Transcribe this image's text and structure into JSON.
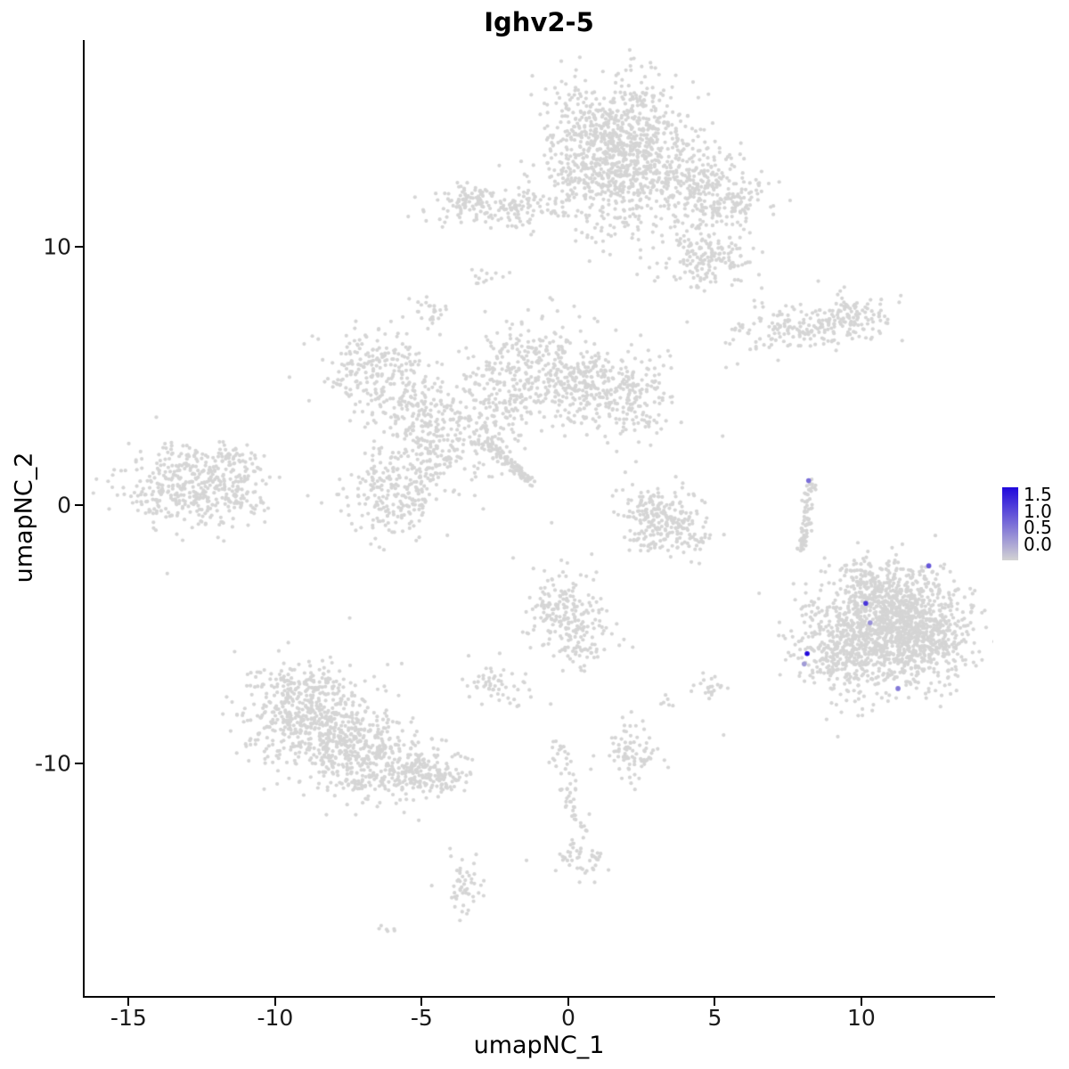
{
  "title": "Ighv2-5",
  "axes": {
    "xlabel": "umapNC_1",
    "ylabel": "umapNC_2",
    "xlim": [
      -16.5,
      14.5
    ],
    "ylim": [
      -19.0,
      18.0
    ],
    "xticks": [
      -15,
      -10,
      -5,
      0,
      5,
      10
    ],
    "yticks": [
      -10,
      0,
      10
    ]
  },
  "legend": {
    "labels": [
      "1.5",
      "1.0",
      "0.5",
      "0.0"
    ],
    "vmax": 1.8,
    "color_high": "#2008dc",
    "color_low": "#d3d3d3"
  },
  "style": {
    "point_color": "#d5d5d5",
    "point_radius": 2.1,
    "highlight_radius": 2.8,
    "axis_color": "#000000",
    "background": "#ffffff"
  },
  "chart_data": {
    "type": "scatter",
    "title": "Ighv2-5",
    "xlabel": "umapNC_1",
    "ylabel": "umapNC_2",
    "seed": 7,
    "clusters": [
      {
        "x": 1.6,
        "y": 14.6,
        "sx": 1.1,
        "sy": 1.1,
        "n": 550
      },
      {
        "x": 2.8,
        "y": 13.2,
        "sx": 1.1,
        "sy": 0.8,
        "n": 300
      },
      {
        "x": 0.8,
        "y": 12.7,
        "sx": 0.8,
        "sy": 0.7,
        "n": 180
      },
      {
        "x": 1.8,
        "y": 11.2,
        "sx": 0.7,
        "sy": 0.7,
        "n": 70
      },
      {
        "x": 5.0,
        "y": 12.0,
        "sx": 0.9,
        "sy": 0.7,
        "n": 250
      },
      {
        "x": 4.7,
        "y": 9.7,
        "sx": 0.8,
        "sy": 0.55,
        "n": 170
      },
      {
        "x": -2.2,
        "y": 11.5,
        "sx": 1.3,
        "sy": 0.4,
        "n": 170
      },
      {
        "x": -3.6,
        "y": 11.8,
        "sx": 0.4,
        "sy": 0.3,
        "n": 40
      },
      {
        "x": 8.0,
        "y": 6.9,
        "sx": 1.3,
        "sy": 0.45,
        "n": 170
      },
      {
        "x": 9.8,
        "y": 7.3,
        "sx": 0.6,
        "sy": 0.45,
        "n": 90
      },
      {
        "x": -2.9,
        "y": 8.8,
        "sx": 0.3,
        "sy": 0.18,
        "n": 12
      },
      {
        "x": -4.6,
        "y": 7.4,
        "sx": 0.35,
        "sy": 0.3,
        "n": 25
      },
      {
        "x": -6.6,
        "y": 5.4,
        "sx": 0.95,
        "sy": 0.8,
        "n": 200
      },
      {
        "x": -5.4,
        "y": 3.8,
        "sx": 0.8,
        "sy": 0.7,
        "n": 130
      },
      {
        "x": -3.9,
        "y": 2.6,
        "sx": 0.9,
        "sy": 0.8,
        "n": 170
      },
      {
        "x": -1.2,
        "y": 5.6,
        "sx": 1.0,
        "sy": 0.8,
        "n": 230
      },
      {
        "x": 1.7,
        "y": 4.2,
        "sx": 1.1,
        "sy": 0.9,
        "n": 260
      },
      {
        "x": 0.0,
        "y": 4.6,
        "sx": 0.9,
        "sy": 0.7,
        "n": 120
      },
      {
        "x": -2.3,
        "y": 3.9,
        "sx": 0.9,
        "sy": 0.7,
        "n": 120
      },
      {
        "x": -5.9,
        "y": 0.4,
        "sx": 0.85,
        "sy": 0.85,
        "n": 220
      },
      {
        "x": -4.8,
        "y": 1.7,
        "sx": 0.5,
        "sy": 0.5,
        "n": 50
      },
      {
        "x": -12.8,
        "y": 0.8,
        "sx": 1.1,
        "sy": 0.75,
        "n": 380
      },
      {
        "x": -11.2,
        "y": 1.7,
        "sx": 0.5,
        "sy": 0.4,
        "n": 50
      },
      {
        "x": -11.4,
        "y": 0.1,
        "sx": 0.5,
        "sy": 0.5,
        "n": 40
      },
      {
        "x": 2.7,
        "y": -0.1,
        "sx": 0.5,
        "sy": 0.4,
        "n": 80
      },
      {
        "x": 3.7,
        "y": -0.5,
        "sx": 0.55,
        "sy": 0.45,
        "n": 90
      },
      {
        "x": 3.1,
        "y": -1.2,
        "sx": 0.5,
        "sy": 0.35,
        "n": 70
      },
      {
        "x": 4.4,
        "y": -1.3,
        "sx": 0.3,
        "sy": 0.25,
        "n": 20
      },
      {
        "x": 11.2,
        "y": -4.3,
        "sx": 1.1,
        "sy": 0.9,
        "n": 700
      },
      {
        "x": 10.3,
        "y": -5.6,
        "sx": 1.0,
        "sy": 0.9,
        "n": 450
      },
      {
        "x": 12.2,
        "y": -5.2,
        "sx": 0.8,
        "sy": 0.8,
        "n": 300
      },
      {
        "x": 8.8,
        "y": -5.3,
        "sx": 0.6,
        "sy": 1.0,
        "n": 130
      },
      {
        "x": 10.5,
        "y": -3.0,
        "sx": 0.9,
        "sy": 0.5,
        "n": 150
      },
      {
        "x": -0.2,
        "y": -4.0,
        "sx": 0.7,
        "sy": 0.8,
        "n": 170
      },
      {
        "x": 0.4,
        "y": -5.2,
        "sx": 0.5,
        "sy": 0.5,
        "n": 60
      },
      {
        "x": -2.5,
        "y": -6.9,
        "sx": 0.45,
        "sy": 0.4,
        "n": 55
      },
      {
        "x": -8.6,
        "y": -8.4,
        "sx": 1.2,
        "sy": 1.0,
        "n": 550
      },
      {
        "x": -7.0,
        "y": -9.8,
        "sx": 0.9,
        "sy": 0.7,
        "n": 280
      },
      {
        "x": -5.3,
        "y": -10.3,
        "sx": 0.7,
        "sy": 0.5,
        "n": 150
      },
      {
        "x": -4.2,
        "y": -10.6,
        "sx": 0.4,
        "sy": 0.3,
        "n": 60
      },
      {
        "x": -9.3,
        "y": -6.9,
        "sx": 0.7,
        "sy": 0.5,
        "n": 80
      },
      {
        "x": 2.3,
        "y": -9.6,
        "sx": 0.5,
        "sy": 0.55,
        "n": 80
      },
      {
        "x": 4.9,
        "y": -7.2,
        "sx": 0.3,
        "sy": 0.25,
        "n": 22
      },
      {
        "x": 3.3,
        "y": -7.6,
        "sx": 0.15,
        "sy": 0.12,
        "n": 6
      },
      {
        "x": 0.4,
        "y": -13.6,
        "sx": 0.45,
        "sy": 0.35,
        "n": 45
      },
      {
        "x": -3.5,
        "y": -14.8,
        "sx": 0.3,
        "sy": 0.55,
        "n": 50
      },
      {
        "x": -6.2,
        "y": -16.4,
        "sx": 0.2,
        "sy": 0.1,
        "n": 6
      }
    ],
    "streaks": [
      {
        "x1": -2.7,
        "y1": 2.4,
        "x2": -1.3,
        "y2": 0.9,
        "w": 0.12,
        "n": 90
      },
      {
        "x1": 8.25,
        "y1": 0.9,
        "x2": 8.0,
        "y2": -1.8,
        "w": 0.1,
        "n": 75
      },
      {
        "x1": -0.4,
        "y1": -9.2,
        "x2": 0.5,
        "y2": -12.8,
        "w": 0.18,
        "n": 55
      }
    ],
    "outliers": [
      [
        4.2,
        -2.2
      ],
      [
        0.8,
        -1.9
      ],
      [
        1.9,
        -5.2
      ],
      [
        2.2,
        -5.5
      ],
      [
        -5.6,
        -11.9
      ],
      [
        -5.1,
        -12.2
      ],
      [
        4.6,
        -6.5
      ],
      [
        -0.6,
        -7.7
      ],
      [
        5.3,
        -8.9
      ],
      [
        0.9,
        -14.6
      ],
      [
        -2.0,
        9.0
      ],
      [
        6.6,
        8.4
      ]
    ],
    "expressing_cells": [
      {
        "x": 8.2,
        "y": 0.95,
        "value": 0.9
      },
      {
        "x": 12.3,
        "y": -2.35,
        "value": 1.1
      },
      {
        "x": 10.15,
        "y": -3.8,
        "value": 1.4
      },
      {
        "x": 10.3,
        "y": -4.55,
        "value": 0.6
      },
      {
        "x": 8.15,
        "y": -5.75,
        "value": 1.8
      },
      {
        "x": 8.05,
        "y": -6.15,
        "value": 0.5
      },
      {
        "x": 11.25,
        "y": -7.1,
        "value": 0.8
      }
    ]
  }
}
